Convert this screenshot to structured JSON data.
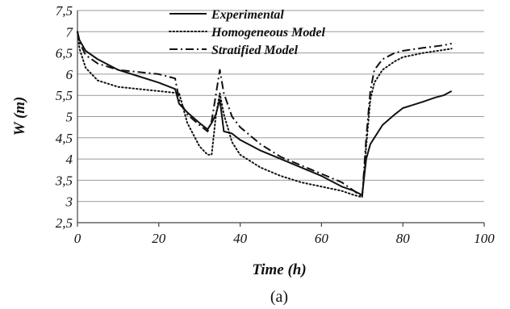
{
  "chart_data": {
    "type": "line",
    "title": "",
    "xlabel": "Time  (h)",
    "ylabel": "W (m)",
    "caption": "(a)",
    "xlim": [
      0,
      100
    ],
    "ylim": [
      2.5,
      7.5
    ],
    "xticks": [
      0,
      20,
      40,
      60,
      80,
      100
    ],
    "yticks": [
      "2,5",
      "3",
      "3,5",
      "4",
      "4,5",
      "5",
      "5,5",
      "6",
      "6,5",
      "7",
      "7,5"
    ],
    "grid": "horizontal",
    "legend_position": "top-center",
    "series": [
      {
        "name": "Experimental",
        "style": "solid",
        "x": [
          0,
          0.5,
          2,
          5,
          10,
          15,
          20,
          24,
          25,
          27,
          30,
          32,
          33,
          34,
          35,
          36,
          38,
          40,
          45,
          50,
          55,
          60,
          65,
          68,
          70,
          71,
          72,
          75,
          78,
          80,
          85,
          88,
          90,
          92
        ],
        "y": [
          7.0,
          6.8,
          6.55,
          6.35,
          6.1,
          5.95,
          5.8,
          5.65,
          5.3,
          5.1,
          4.85,
          4.7,
          4.85,
          5.05,
          5.4,
          4.65,
          4.6,
          4.45,
          4.2,
          4.0,
          3.8,
          3.6,
          3.35,
          3.25,
          3.15,
          4.0,
          4.35,
          4.8,
          5.05,
          5.2,
          5.35,
          5.45,
          5.5,
          5.6
        ]
      },
      {
        "name": "Homogeneous Model",
        "style": "dotted",
        "x": [
          0,
          0.5,
          2,
          5,
          10,
          15,
          20,
          25,
          27,
          30,
          32,
          33,
          34,
          35,
          36,
          38,
          40,
          45,
          50,
          55,
          60,
          65,
          68,
          70,
          71,
          72,
          73,
          75,
          78,
          80,
          85,
          90,
          92
        ],
        "y": [
          7.0,
          6.6,
          6.15,
          5.85,
          5.7,
          5.65,
          5.6,
          5.55,
          4.85,
          4.3,
          4.1,
          4.1,
          5.0,
          5.55,
          5.05,
          4.4,
          4.1,
          3.8,
          3.6,
          3.45,
          3.35,
          3.25,
          3.15,
          3.1,
          4.3,
          5.4,
          5.8,
          6.1,
          6.3,
          6.4,
          6.5,
          6.57,
          6.6
        ]
      },
      {
        "name": "Stratified Model",
        "style": "dashdot",
        "x": [
          0,
          0.5,
          2,
          5,
          10,
          15,
          20,
          24,
          25,
          27,
          30,
          32,
          33,
          34,
          35,
          36,
          38,
          40,
          45,
          50,
          55,
          60,
          65,
          68,
          70,
          71,
          72,
          73,
          75,
          78,
          80,
          85,
          90,
          92
        ],
        "y": [
          7.0,
          6.75,
          6.45,
          6.25,
          6.1,
          6.05,
          6.0,
          5.9,
          5.4,
          5.05,
          4.8,
          4.65,
          4.9,
          5.5,
          6.1,
          5.55,
          5.0,
          4.75,
          4.35,
          4.05,
          3.85,
          3.65,
          3.45,
          3.25,
          3.1,
          4.5,
          5.6,
          6.1,
          6.35,
          6.5,
          6.55,
          6.62,
          6.68,
          6.72
        ]
      }
    ]
  }
}
